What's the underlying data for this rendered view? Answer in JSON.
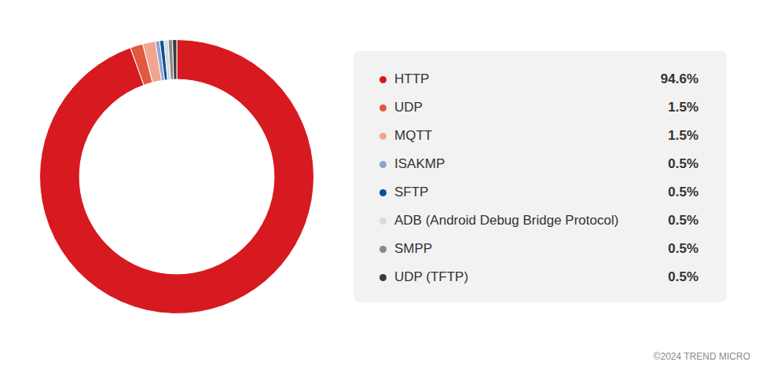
{
  "chart_data": {
    "type": "doughnut",
    "categories": [
      "HTTP",
      "UDP",
      "MQTT",
      "ISAKMP",
      "SFTP",
      "ADB (Android Debug Bridge Protocol)",
      "SMPP",
      "UDP (TFTP)"
    ],
    "values": [
      94.6,
      1.5,
      1.5,
      0.5,
      0.5,
      0.5,
      0.5,
      0.5
    ],
    "value_labels": [
      "94.6%",
      "1.5%",
      "1.5%",
      "0.5%",
      "0.5%",
      "0.5%",
      "0.5%",
      "0.5%"
    ],
    "colors": [
      "#d71920",
      "#e05a3f",
      "#f0a58f",
      "#8fa3cf",
      "#0b4f9c",
      "#d9d9d9",
      "#8a8a8a",
      "#3a3a3a"
    ],
    "legend": "right",
    "annotations": [
      "©2024 TREND MICRO"
    ]
  }
}
